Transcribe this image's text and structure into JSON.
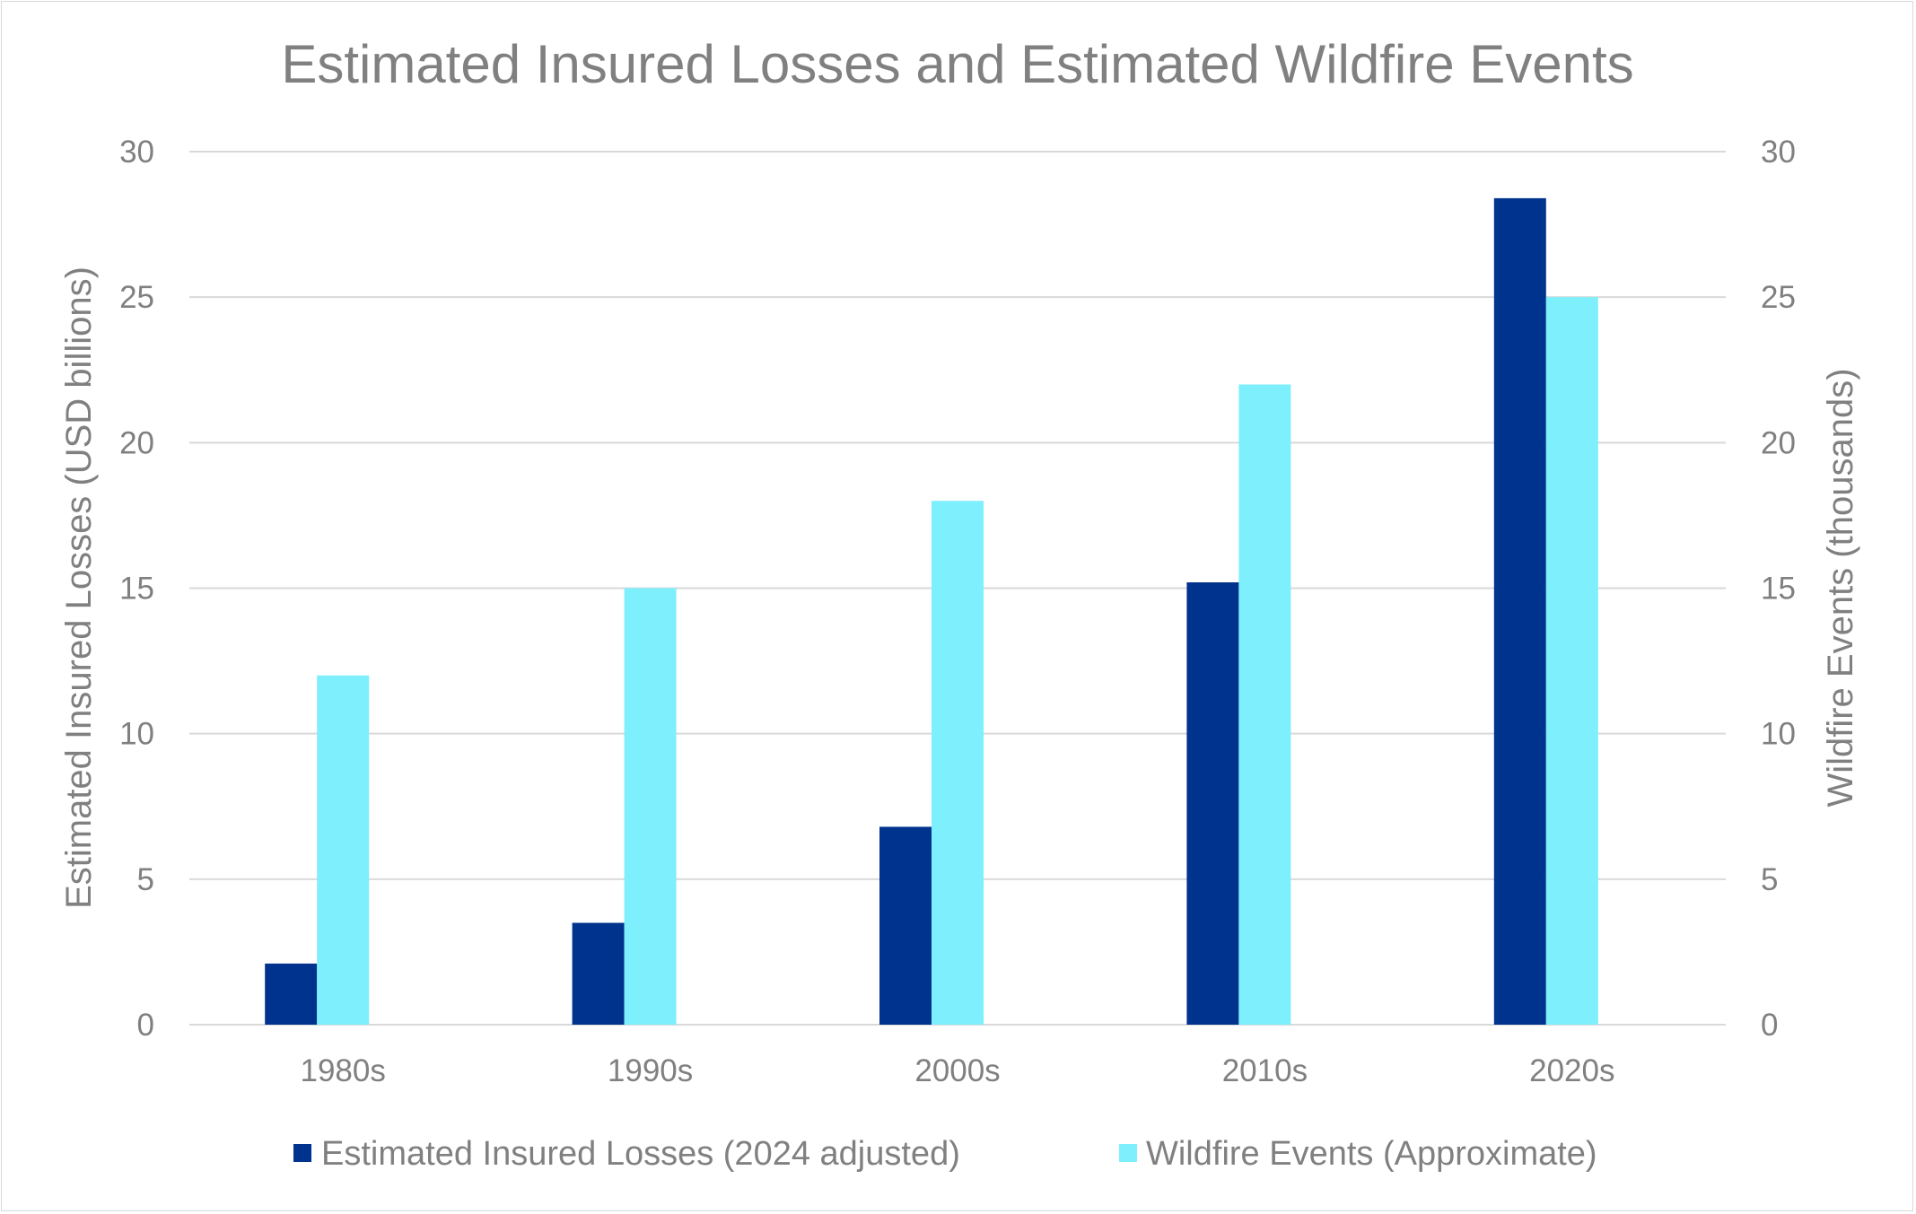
{
  "chart_data": {
    "type": "bar",
    "title": "Estimated Insured Losses and Estimated Wildfire Events",
    "categories": [
      "1980s",
      "1990s",
      "2000s",
      "2010s",
      "2020s"
    ],
    "series": [
      {
        "name": "Estimated Insured Losses (2024 adjusted)",
        "axis": "left",
        "color": "#00338D",
        "values": [
          2.1,
          3.5,
          6.8,
          15.2,
          28.4
        ]
      },
      {
        "name": "Wildfire Events (Approximate)",
        "axis": "right",
        "color": "#7DEFFD",
        "values": [
          12,
          15,
          18,
          22,
          25
        ]
      }
    ],
    "ylabel": "Estimated Insured Losses (USD billions)",
    "y2label": "Wildfire Events (thousands)",
    "ylim": [
      0,
      30
    ],
    "y2lim": [
      0,
      30
    ],
    "yticks": [
      "0",
      "5",
      "10",
      "15",
      "20",
      "25",
      "30"
    ],
    "y2ticks": [
      "0",
      "5",
      "10",
      "15",
      "20",
      "25",
      "30"
    ],
    "grid": true,
    "legend": "bottom",
    "gridColor": "#d9d9d9",
    "textColor": "#808080"
  }
}
